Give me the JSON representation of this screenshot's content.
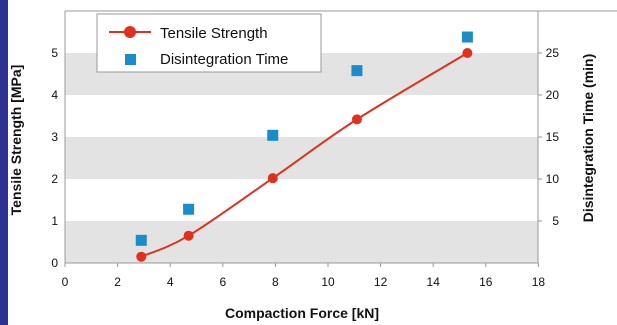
{
  "colors": {
    "accent_bar": "#2E3192",
    "band": "#E3E3E3",
    "axis": "#999999",
    "tensile": "#E0301E",
    "disintegration": "#1A8CC8"
  },
  "chart_data": {
    "type": "line",
    "xlabel": "Compaction Force [kN]",
    "ylabel_left": "Tensile Strength  [MPa]",
    "ylabel_right": "Disintegration Time (min)",
    "xlim": [
      0,
      18
    ],
    "ylim_left": [
      0,
      6
    ],
    "ylim_right": [
      0,
      30
    ],
    "x_ticks": [
      "0",
      "2",
      "4",
      "6",
      "8",
      "10",
      "12",
      "14",
      "16",
      "18"
    ],
    "y_left_ticks": [
      "0",
      "1",
      "2",
      "3",
      "4",
      "5"
    ],
    "y_right_ticks": [
      "5",
      "10",
      "15",
      "20",
      "25"
    ],
    "legend_position": "top-left",
    "series": [
      {
        "name": "Tensile Strength",
        "axis": "left",
        "style": "line-circle",
        "color": "#E0301E",
        "x": [
          2.9,
          4.7,
          7.9,
          11.1,
          15.3
        ],
        "y": [
          0.15,
          0.65,
          2.02,
          3.42,
          5.0
        ]
      },
      {
        "name": "Disintegration Time",
        "axis": "right",
        "style": "square",
        "color": "#1A8CC8",
        "x": [
          2.9,
          4.7,
          7.9,
          11.1,
          15.3
        ],
        "y": [
          2.7,
          6.4,
          15.2,
          22.9,
          26.9
        ]
      }
    ]
  }
}
